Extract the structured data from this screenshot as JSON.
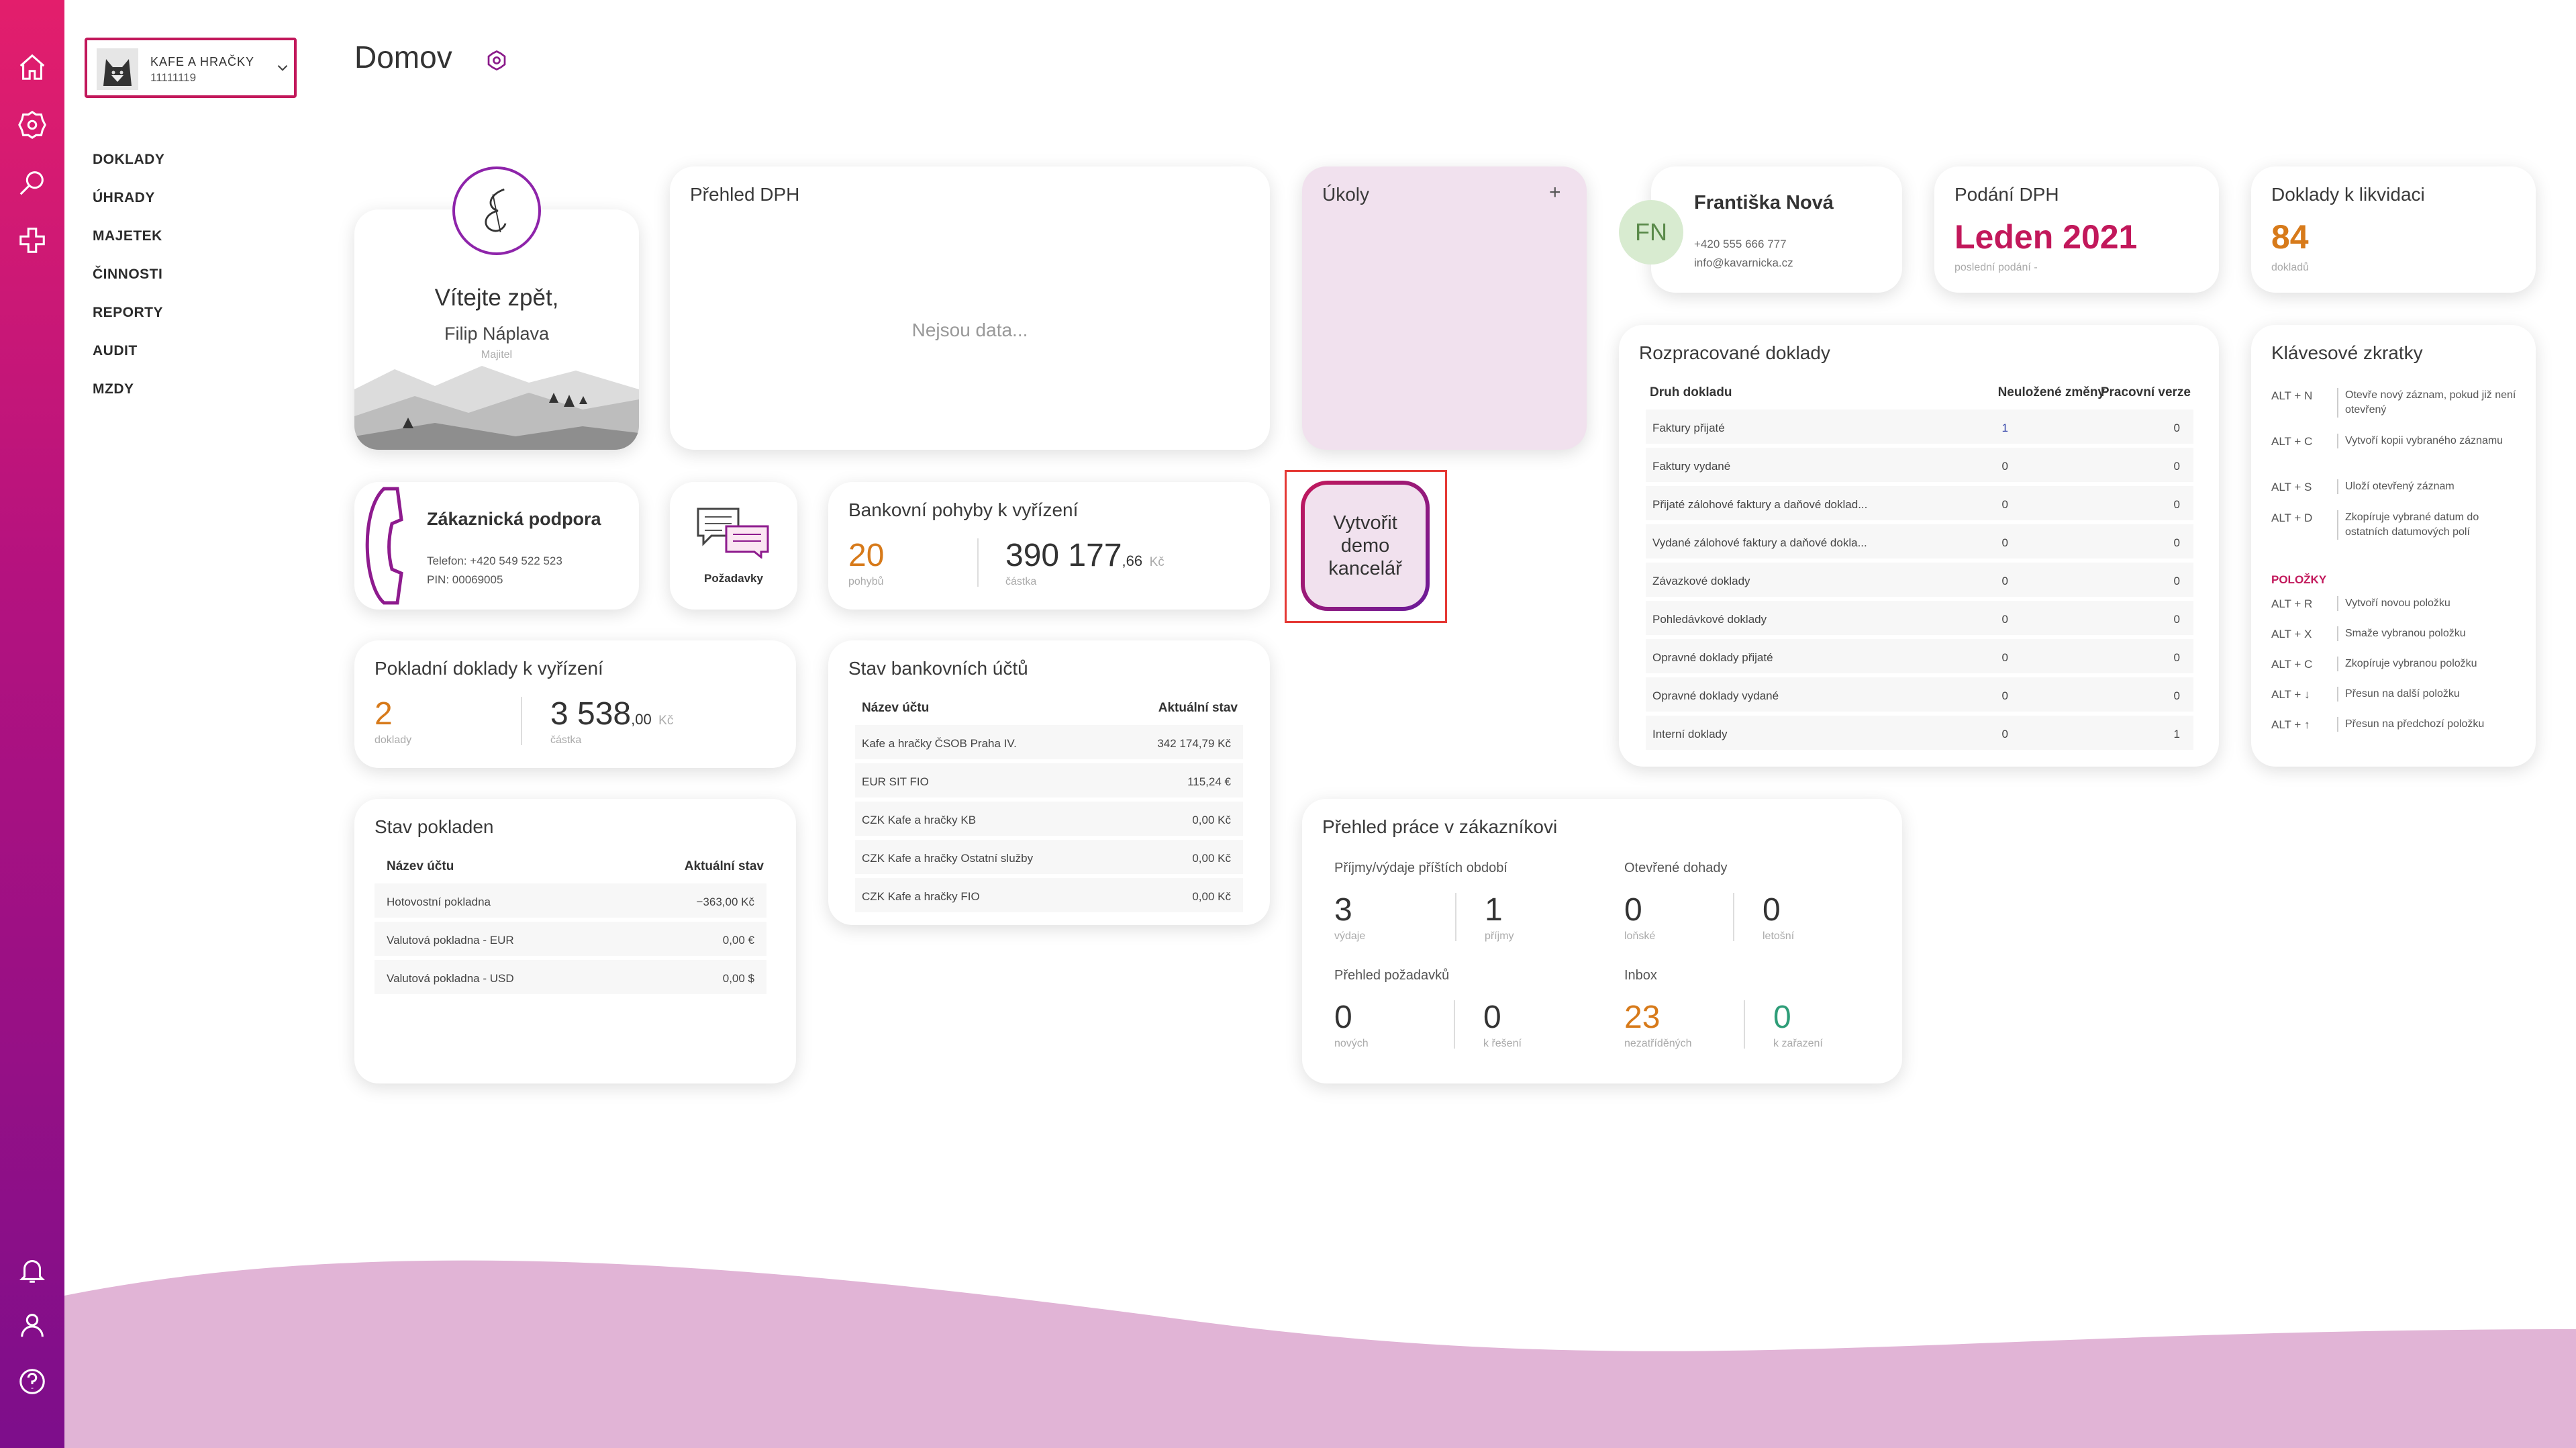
{
  "company": {
    "name": "KAFE A HRAČKY",
    "id": "11111119"
  },
  "menu": [
    "DOKLADY",
    "ÚHRADY",
    "MAJETEK",
    "ČINNOSTI",
    "REPORTY",
    "AUDIT",
    "MZDY"
  ],
  "page": {
    "title": "Domov"
  },
  "welcome": {
    "greeting": "Vítejte zpět,",
    "name": "Filip Náplava",
    "role": "Majitel"
  },
  "dph_overview": {
    "title": "Přehled DPH",
    "empty": "Nejsou data..."
  },
  "tasks": {
    "title": "Úkoly",
    "add": "+"
  },
  "contact": {
    "initials": "FN",
    "name": "Františka Nová",
    "phone": "+420 555 666 777",
    "email": "info@kavarnicka.cz"
  },
  "dph_filing": {
    "title": "Podání DPH",
    "value": "Leden 2021",
    "sub": "poslední podání -"
  },
  "liquidation": {
    "title": "Doklady k likvidaci",
    "value": "84",
    "sub": "dokladů"
  },
  "support": {
    "title": "Zákaznická podpora",
    "phone": "Telefon: +420 549 522 523",
    "pin": "PIN: 00069005"
  },
  "requests": {
    "label": "Požadavky"
  },
  "bank_moves": {
    "title": "Bankovní pohyby k vyřízení",
    "count": "20",
    "count_label": "pohybů",
    "amount": "390 177",
    "amount_dec": ",66",
    "currency": "Kč",
    "amount_label": "částka"
  },
  "demo": {
    "label": "Vytvořit demo kancelář"
  },
  "in_progress": {
    "title": "Rozpracované doklady",
    "headers": [
      "Druh dokladu",
      "Neuložené změny",
      "Pracovní verze"
    ],
    "rows": [
      [
        "Faktury přijaté",
        "1",
        "0"
      ],
      [
        "Faktury vydané",
        "0",
        "0"
      ],
      [
        "Přijaté zálohové faktury a daňové doklad...",
        "0",
        "0"
      ],
      [
        "Vydané zálohové faktury a daňové dokla...",
        "0",
        "0"
      ],
      [
        "Závazkové doklady",
        "0",
        "0"
      ],
      [
        "Pohledávkové doklady",
        "0",
        "0"
      ],
      [
        "Opravné doklady přijaté",
        "0",
        "0"
      ],
      [
        "Opravné doklady vydané",
        "0",
        "0"
      ],
      [
        "Interní doklady",
        "0",
        "1"
      ]
    ]
  },
  "shortcuts": {
    "title": "Klávesové zkratky",
    "items": [
      {
        "key": "ALT + N",
        "desc": "Otevře nový záznam, pokud již není otevřený"
      },
      {
        "key": "ALT + C",
        "desc": "Vytvoří kopii vybraného záznamu"
      },
      {
        "key": "ALT + S",
        "desc": "Uloží otevřený záznam"
      },
      {
        "key": "ALT + D",
        "desc": "Zkopíruje vybrané datum do ostatních datumových polí"
      }
    ],
    "section": "POLOŽKY",
    "items2": [
      {
        "key": "ALT + R",
        "desc": "Vytvoří novou položku"
      },
      {
        "key": "ALT + X",
        "desc": "Smaže vybranou položku"
      },
      {
        "key": "ALT + C",
        "desc": "Zkopíruje vybranou položku"
      },
      {
        "key": "ALT + ↓",
        "desc": "Přesun na další položku"
      },
      {
        "key": "ALT + ↑",
        "desc": "Přesun na předchozí položku"
      }
    ]
  },
  "cash_docs": {
    "title": "Pokladní doklady k vyřízení",
    "count": "2",
    "count_label": "doklady",
    "amount": "3 538",
    "amount_dec": ",00",
    "currency": "Kč",
    "amount_label": "částka"
  },
  "bank_accounts": {
    "title": "Stav bankovních účtů",
    "headers": [
      "Název účtu",
      "Aktuální stav"
    ],
    "rows": [
      [
        "Kafe a hračky ČSOB Praha IV.",
        "342 174,79 Kč"
      ],
      [
        "EUR SIT FIO",
        "115,24 €"
      ],
      [
        "CZK Kafe a hračky KB",
        "0,00 Kč"
      ],
      [
        "CZK Kafe a hračky Ostatní služby",
        "0,00 Kč"
      ],
      [
        "CZK Kafe a hračky FIO",
        "0,00 Kč"
      ]
    ]
  },
  "cash_state": {
    "title": "Stav pokladen",
    "headers": [
      "Název účtu",
      "Aktuální stav"
    ],
    "rows": [
      [
        "Hotovostní pokladna",
        "−363,00 Kč"
      ],
      [
        "Valutová pokladna - EUR",
        "0,00 €"
      ],
      [
        "Valutová pokladna - USD",
        "0,00 $"
      ]
    ]
  },
  "work_overview": {
    "title": "Přehled práce v zákazníkovi",
    "g1": {
      "title": "Příjmy/výdaje příštích období",
      "a": "3",
      "a_label": "výdaje",
      "b": "1",
      "b_label": "příjmy"
    },
    "g2": {
      "title": "Otevřené dohady",
      "a": "0",
      "a_label": "loňské",
      "b": "0",
      "b_label": "letošní"
    },
    "g3": {
      "title": "Přehled požadavků",
      "a": "0",
      "a_label": "nových",
      "b": "0",
      "b_label": "k řešení"
    },
    "g4": {
      "title": "Inbox",
      "a": "23",
      "a_label": "nezatříděných",
      "b": "0",
      "b_label": "k zařazení"
    }
  },
  "colors": {
    "brand": "#c2185b",
    "accent_orange": "#d77a1a",
    "accent_teal": "#2e9d78",
    "wave": "#e1b4d6"
  }
}
